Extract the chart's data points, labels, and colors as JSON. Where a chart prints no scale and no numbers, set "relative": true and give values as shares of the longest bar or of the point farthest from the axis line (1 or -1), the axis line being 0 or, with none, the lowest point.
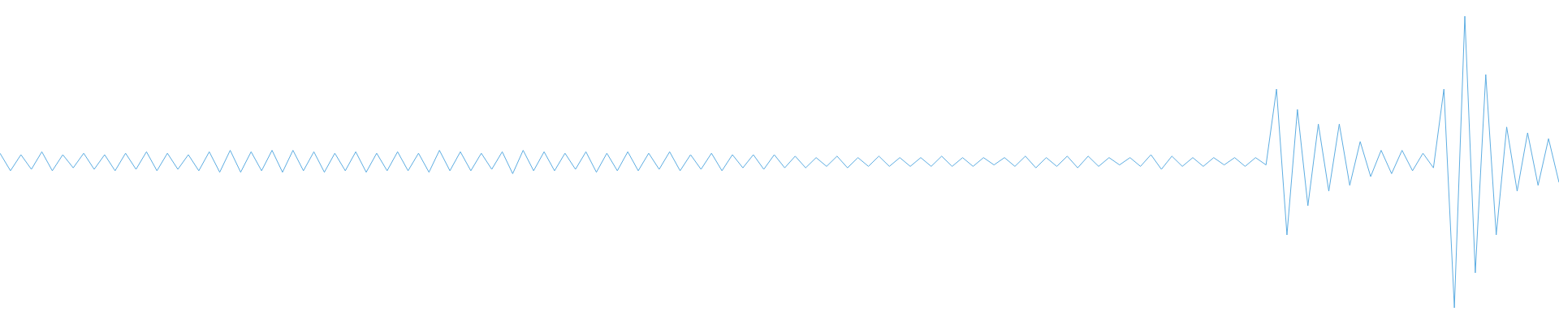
{
  "chart_data": {
    "type": "line",
    "relative": true,
    "color": "#5dade2",
    "marker": "none",
    "legend": false,
    "categories": [
      null,
      null,
      null,
      null,
      null,
      null,
      null,
      null,
      null,
      null,
      null,
      null,
      null,
      null,
      null,
      null,
      null,
      null,
      null,
      null,
      null,
      null,
      null,
      null,
      null,
      null,
      null,
      null,
      null,
      null,
      null,
      null,
      null,
      null,
      null,
      null,
      null,
      null,
      null,
      null,
      null,
      null,
      null,
      null,
      null,
      null,
      null,
      null,
      null,
      null,
      null,
      null,
      null,
      null,
      null,
      null,
      null,
      null,
      null,
      null,
      null,
      null,
      null,
      null,
      null,
      null,
      null,
      null,
      null,
      null,
      null,
      null,
      null,
      null,
      null,
      null,
      null,
      null,
      null,
      null,
      null,
      null,
      null,
      null,
      null,
      null,
      null,
      null,
      null,
      null,
      null,
      null,
      null,
      null,
      null,
      null,
      null,
      null,
      null,
      null,
      null,
      null,
      null,
      null,
      null,
      null,
      null,
      null,
      null,
      null,
      null,
      null,
      null,
      null,
      null,
      null,
      null,
      null,
      null,
      null,
      null,
      null,
      null,
      null,
      null,
      null,
      null,
      null,
      null,
      null,
      null,
      null,
      null,
      null,
      null,
      null,
      null,
      null,
      null,
      null,
      null,
      null,
      null,
      null,
      null,
      null,
      null,
      null,
      null,
      null
    ],
    "values": [
      0.53,
      0.47,
      0.525,
      0.475,
      0.535,
      0.47,
      0.525,
      0.48,
      0.53,
      0.475,
      0.525,
      0.47,
      0.53,
      0.475,
      0.535,
      0.47,
      0.53,
      0.475,
      0.525,
      0.47,
      0.535,
      0.465,
      0.54,
      0.465,
      0.535,
      0.47,
      0.54,
      0.465,
      0.54,
      0.47,
      0.535,
      0.465,
      0.53,
      0.47,
      0.535,
      0.465,
      0.53,
      0.47,
      0.535,
      0.47,
      0.53,
      0.465,
      0.54,
      0.47,
      0.535,
      0.47,
      0.53,
      0.475,
      0.535,
      0.46,
      0.54,
      0.47,
      0.535,
      0.47,
      0.53,
      0.475,
      0.535,
      0.465,
      0.53,
      0.47,
      0.535,
      0.47,
      0.53,
      0.475,
      0.535,
      0.47,
      0.525,
      0.475,
      0.53,
      0.47,
      0.525,
      0.48,
      0.525,
      0.475,
      0.525,
      0.48,
      0.52,
      0.48,
      0.515,
      0.485,
      0.52,
      0.48,
      0.515,
      0.485,
      0.52,
      0.485,
      0.515,
      0.485,
      0.515,
      0.485,
      0.52,
      0.485,
      0.515,
      0.485,
      0.515,
      0.49,
      0.515,
      0.485,
      0.52,
      0.48,
      0.515,
      0.485,
      0.52,
      0.48,
      0.52,
      0.485,
      0.515,
      0.49,
      0.515,
      0.485,
      0.525,
      0.475,
      0.52,
      0.485,
      0.515,
      0.485,
      0.515,
      0.49,
      0.515,
      0.485,
      0.515,
      0.49,
      0.75,
      0.25,
      0.68,
      0.35,
      0.63,
      0.4,
      0.63,
      0.42,
      0.57,
      0.45,
      0.54,
      0.46,
      0.54,
      0.47,
      0.53,
      0.48,
      0.75,
      0,
      1,
      0.12,
      0.8,
      0.25,
      0.62,
      0.4,
      0.6,
      0.42,
      0.58,
      0.43
    ]
  }
}
